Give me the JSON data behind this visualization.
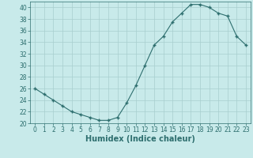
{
  "x": [
    0,
    1,
    2,
    3,
    4,
    5,
    6,
    7,
    8,
    9,
    10,
    11,
    12,
    13,
    14,
    15,
    16,
    17,
    18,
    19,
    20,
    21,
    22,
    23
  ],
  "y": [
    26,
    25,
    24,
    23,
    22,
    21.5,
    21,
    20.5,
    20.5,
    21,
    23.5,
    26.5,
    30,
    33.5,
    35,
    37.5,
    39,
    40.5,
    40.5,
    40,
    39,
    38.5,
    35,
    33.5
  ],
  "line_color": "#2d6e6e",
  "marker": "+",
  "marker_size": 3,
  "marker_linewidth": 1.0,
  "bg_color": "#c8eaea",
  "grid_color": "#a8cece",
  "xlabel": "Humidex (Indice chaleur)",
  "xlabel_fontsize": 7,
  "ylim": [
    20,
    41
  ],
  "xlim": [
    -0.5,
    23.5
  ],
  "yticks": [
    20,
    22,
    24,
    26,
    28,
    30,
    32,
    34,
    36,
    38,
    40
  ],
  "xticks": [
    0,
    1,
    2,
    3,
    4,
    5,
    6,
    7,
    8,
    9,
    10,
    11,
    12,
    13,
    14,
    15,
    16,
    17,
    18,
    19,
    20,
    21,
    22,
    23
  ],
  "tick_fontsize": 5.5,
  "tick_color": "#2d6e6e",
  "spine_color": "#2d6e6e",
  "linewidth": 0.8
}
